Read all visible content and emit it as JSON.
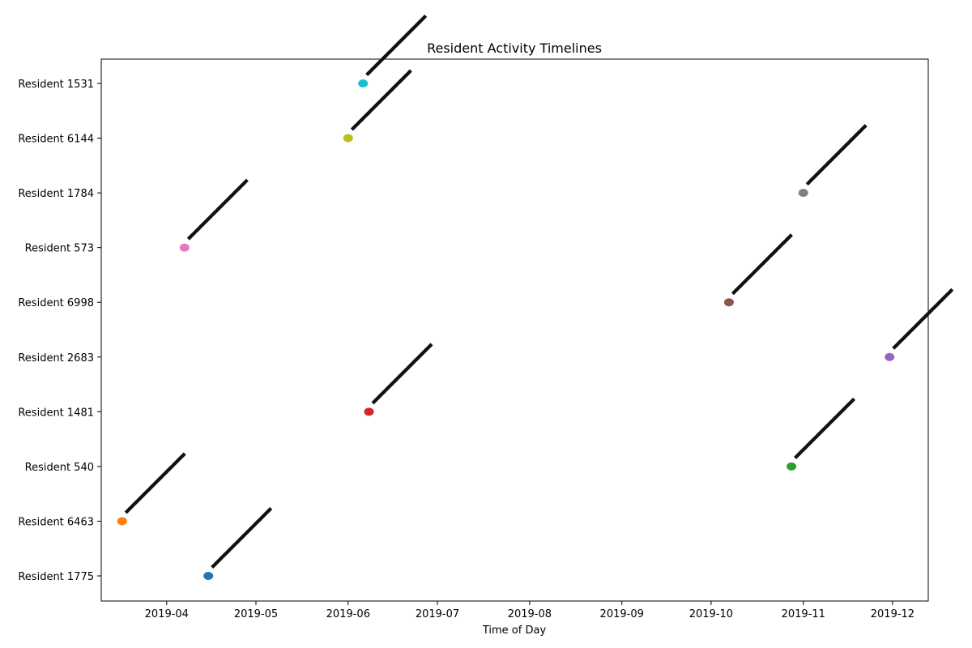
{
  "chart_data": {
    "type": "scatter",
    "title": "Resident Activity Timelines",
    "xlabel": "Time of Day",
    "ylabel": "",
    "x_ticks": [
      "2019-04",
      "2019-05",
      "2019-06",
      "2019-07",
      "2019-08",
      "2019-09",
      "2019-10",
      "2019-11",
      "2019-12"
    ],
    "xlim": [
      "2019-03-10",
      "2019-12-13"
    ],
    "grid": false,
    "legend": "none",
    "categories": [
      "Resident 1775",
      "Resident 6463",
      "Resident 540",
      "Resident 1481",
      "Resident 2683",
      "Resident 6998",
      "Resident 573",
      "Resident 1784",
      "Resident 6144",
      "Resident 1531"
    ],
    "series": [
      {
        "resident": "Resident 1775",
        "x": "2019-04-15",
        "color": "#1f77b4"
      },
      {
        "resident": "Resident 6463",
        "x": "2019-03-17",
        "color": "#ff7f0e"
      },
      {
        "resident": "Resident 540",
        "x": "2019-10-28",
        "color": "#2ca02c"
      },
      {
        "resident": "Resident 1481",
        "x": "2019-06-08",
        "color": "#d62728"
      },
      {
        "resident": "Resident 2683",
        "x": "2019-11-30",
        "color": "#9467bd"
      },
      {
        "resident": "Resident 6998",
        "x": "2019-10-07",
        "color": "#8c564b"
      },
      {
        "resident": "Resident 573",
        "x": "2019-04-07",
        "color": "#e377c2"
      },
      {
        "resident": "Resident 1784",
        "x": "2019-11-01",
        "color": "#7f7f7f"
      },
      {
        "resident": "Resident 6144",
        "x": "2019-06-01",
        "color": "#bcbd22"
      },
      {
        "resident": "Resident 1531",
        "x": "2019-06-06",
        "color": "#17becf"
      }
    ]
  }
}
